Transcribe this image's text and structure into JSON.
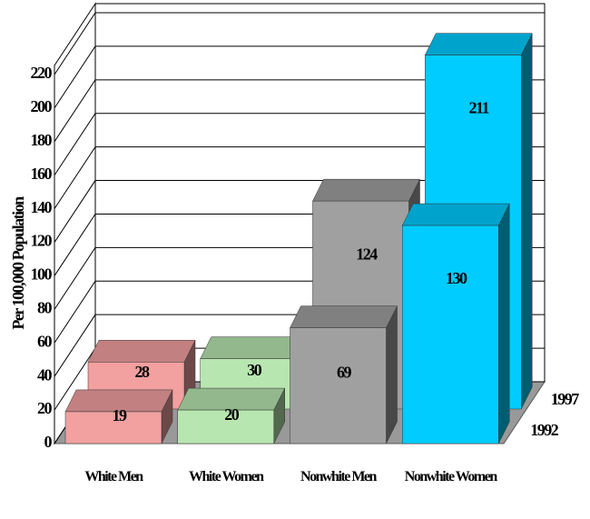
{
  "chart_data": {
    "type": "bar3d",
    "y_label": "Per 100,000 Population",
    "categories": [
      "White Men",
      "White Women",
      "Nonwhite Men",
      "Nonwhite Women"
    ],
    "colors": [
      "#f2a0a0",
      "#b8e6b0",
      "#a0a0a0",
      "#00ccff"
    ],
    "series": [
      {
        "name": "1992",
        "values": [
          19,
          20,
          69,
          130
        ]
      },
      {
        "name": "1997",
        "values": [
          28,
          30,
          124,
          211
        ]
      }
    ],
    "ylim": [
      0,
      220
    ],
    "yticks": [
      0,
      20,
      40,
      60,
      80,
      100,
      120,
      140,
      160,
      180,
      200,
      220
    ],
    "grid": true
  }
}
